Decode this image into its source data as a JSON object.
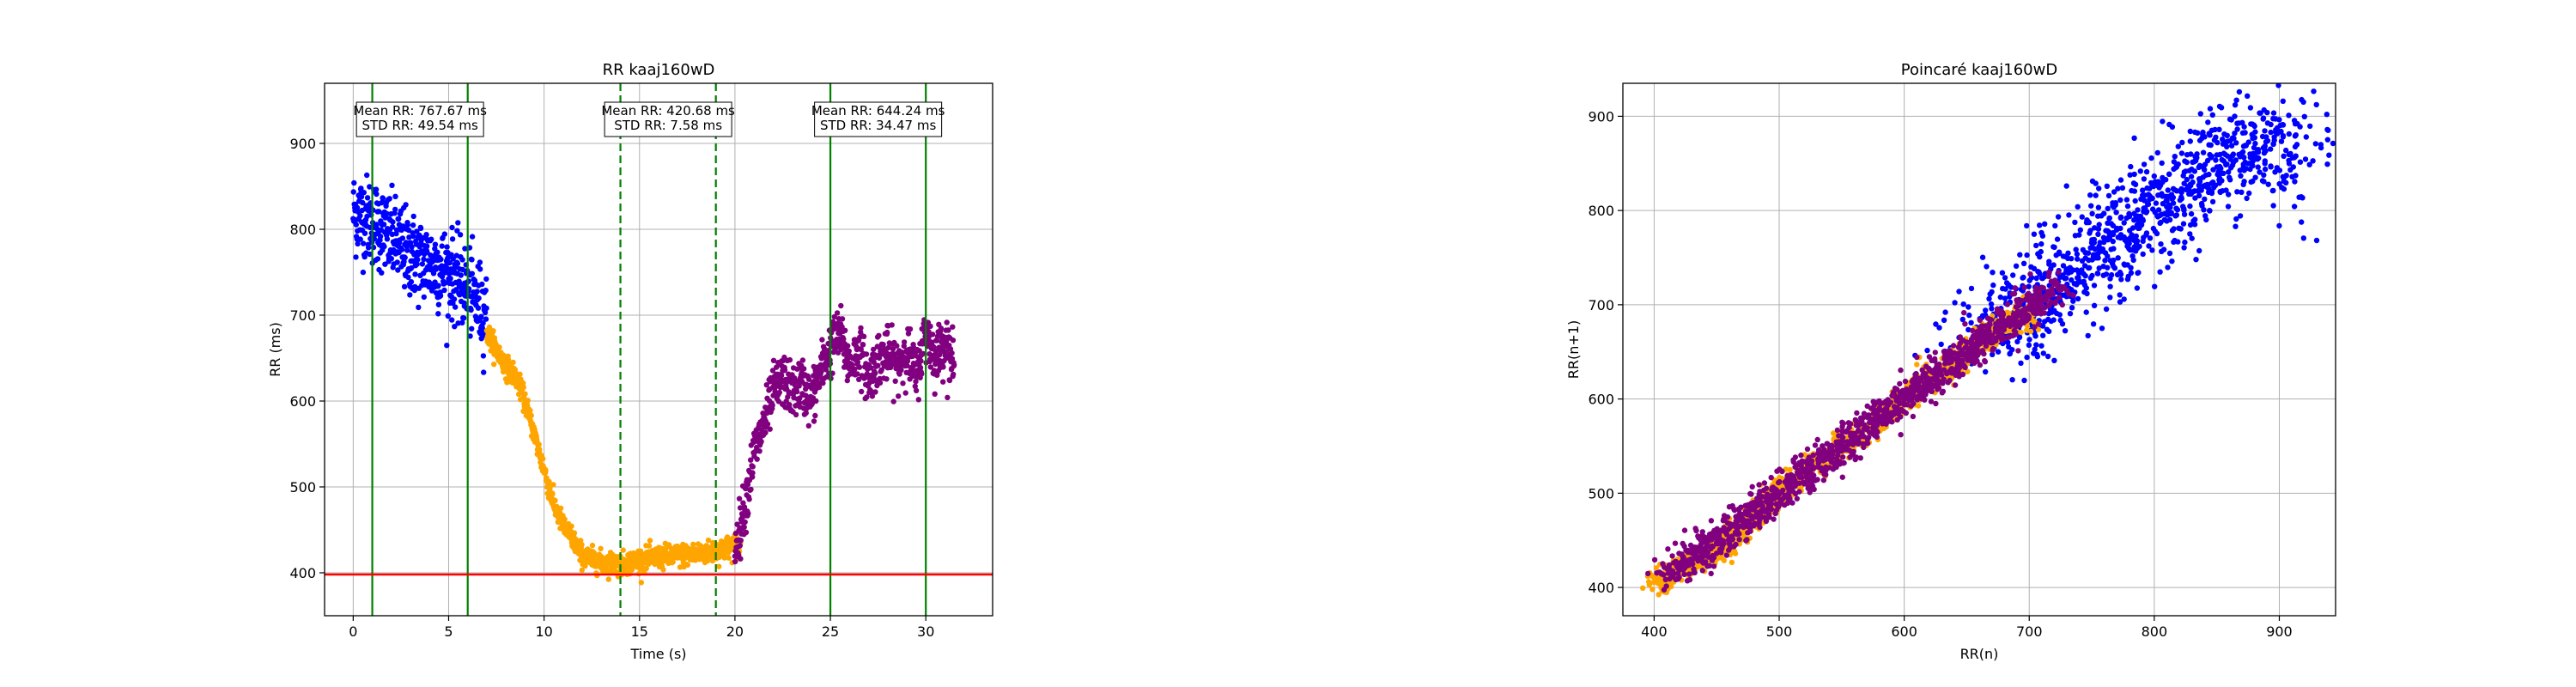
{
  "chart_data": [
    {
      "type": "scatter",
      "title": "RR kaaj160wD",
      "xlabel": "Time (s)",
      "ylabel": "RR (ms)",
      "xlim": [
        -1.5,
        33.5
      ],
      "ylim": [
        350,
        970
      ],
      "xticks": [
        0,
        5,
        10,
        15,
        20,
        25,
        30
      ],
      "yticks": [
        400,
        500,
        600,
        700,
        800,
        900
      ],
      "grid": true,
      "series": [
        {
          "color": "#0000ff",
          "segments": [
            {
              "x": [
                0.0,
                1.0,
                2.0,
                3.0,
                4.0,
                5.0,
                6.0,
                7.0
              ],
              "y": [
                820,
                810,
                790,
                770,
                760,
                750,
                730,
                700
              ],
              "spread": 45
            }
          ]
        },
        {
          "color": "#ffa500",
          "segments": [
            {
              "x": [
                7.0,
                7.5,
                8.0,
                8.5,
                9.0,
                9.5,
                10.0,
                10.5,
                11.0,
                11.5,
                12.0,
                13.0,
                14.0,
                15.0,
                16.0,
                17.0,
                18.0,
                19.0,
                20.0,
                20.3
              ],
              "y": [
                680,
                660,
                640,
                630,
                600,
                560,
                520,
                480,
                455,
                440,
                420,
                412,
                410,
                415,
                418,
                420,
                422,
                425,
                432,
                428
              ],
              "spread": 12
            }
          ]
        },
        {
          "color": "#800080",
          "segments": [
            {
              "x": [
                20.0,
                20.3,
                20.7,
                21.0,
                21.5,
                22.0,
                22.5,
                23.0,
                23.5,
                24.0,
                24.5,
                25.0,
                25.5,
                26.0,
                26.5,
                27.0,
                27.5,
                28.0,
                28.5,
                29.0,
                29.5,
                30.0,
                30.5,
                31.0,
                31.5
              ],
              "y": [
                430,
                455,
                500,
                540,
                570,
                610,
                625,
                610,
                620,
                600,
                635,
                660,
                680,
                640,
                660,
                625,
                650,
                655,
                640,
                660,
                630,
                680,
                650,
                670,
                640
              ],
              "spread": 28
            }
          ]
        }
      ],
      "vlines": [
        {
          "x": 1.0,
          "color": "#008000",
          "style": "solid"
        },
        {
          "x": 6.0,
          "color": "#008000",
          "style": "solid"
        },
        {
          "x": 14.0,
          "color": "#008000",
          "style": "dashed"
        },
        {
          "x": 19.0,
          "color": "#008000",
          "style": "dashed"
        },
        {
          "x": 25.0,
          "color": "#008000",
          "style": "solid"
        },
        {
          "x": 30.0,
          "color": "#008000",
          "style": "solid"
        }
      ],
      "hlines": [
        {
          "y": 398,
          "color": "#ff0000",
          "style": "solid"
        }
      ],
      "annotations": [
        {
          "x": 3.5,
          "y": 928,
          "lines": [
            "Mean RR: 767.67 ms",
            "STD RR: 49.54 ms"
          ]
        },
        {
          "x": 16.5,
          "y": 928,
          "lines": [
            "Mean RR: 420.68 ms",
            "STD RR: 7.58 ms"
          ]
        },
        {
          "x": 27.5,
          "y": 928,
          "lines": [
            "Mean RR: 644.24 ms",
            "STD RR: 34.47 ms"
          ]
        }
      ]
    },
    {
      "type": "scatter",
      "title": "Poincaré kaaj160wD",
      "xlabel": "RR(n)",
      "ylabel": "RR(n+1)",
      "xlim": [
        375,
        945
      ],
      "ylim": [
        370,
        935
      ],
      "xticks": [
        400,
        500,
        600,
        700,
        800,
        900
      ],
      "yticks": [
        400,
        500,
        600,
        700,
        800,
        900
      ],
      "grid": true,
      "series": [
        {
          "color": "#0000ff",
          "segments": [
            {
              "x": [
                660,
                700,
                740,
                780,
                820,
                860,
                900,
                915
              ],
              "y": [
                660,
                700,
                740,
                780,
                820,
                860,
                880,
                810
              ],
              "spread": 38
            }
          ]
        },
        {
          "color": "#ffa500",
          "segments": [
            {
              "x": [
                400,
                410,
                420,
                430,
                440,
                460,
                480,
                500,
                530,
                560,
                590,
                620,
                650,
                680,
                700
              ],
              "y": [
                402,
                408,
                418,
                425,
                430,
                450,
                475,
                500,
                530,
                560,
                590,
                620,
                650,
                680,
                690
              ],
              "spread": 10
            }
          ]
        },
        {
          "color": "#800080",
          "segments": [
            {
              "x": [
                410,
                430,
                460,
                490,
                520,
                550,
                580,
                600,
                620,
                640,
                660,
                680,
                700,
                720
              ],
              "y": [
                412,
                430,
                462,
                490,
                520,
                548,
                580,
                600,
                620,
                640,
                660,
                680,
                700,
                720
              ],
              "spread": 14
            }
          ]
        }
      ]
    }
  ]
}
